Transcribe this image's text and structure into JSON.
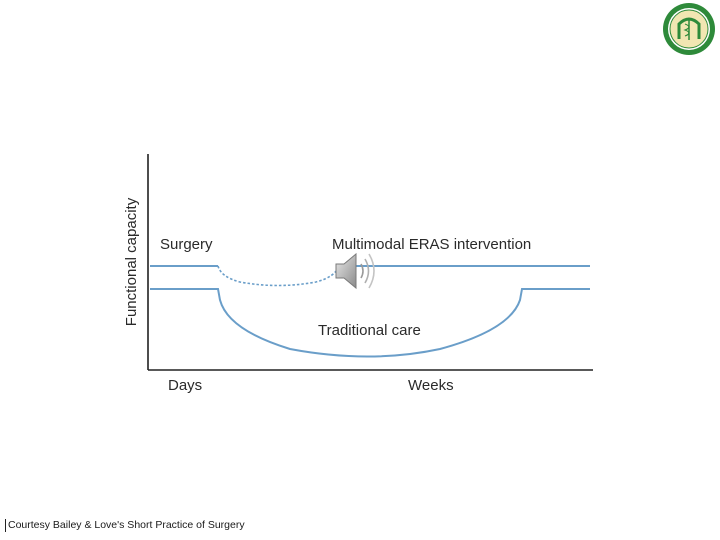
{
  "diagram": {
    "ylabel": "Functional capacity",
    "label_surgery": "Surgery",
    "label_eras": "Multimodal ERAS intervention",
    "label_traditional": "Traditional care",
    "xlabel_days": "Days",
    "xlabel_weeks": "Weeks",
    "line_color": "#6a9ec9",
    "axis_color": "#222222"
  },
  "caption": "Courtesy Bailey & Love's Short Practice of Surgery",
  "logo": {
    "icon": "university-seal-icon",
    "ring_color": "#2e8a3a",
    "center_color": "#f1e6b2"
  },
  "audio": {
    "icon": "speaker-icon"
  }
}
